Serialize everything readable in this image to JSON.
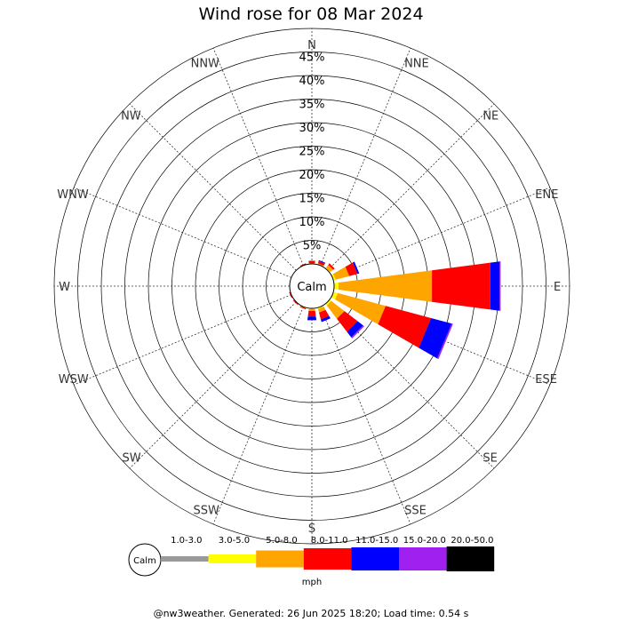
{
  "chart_data": {
    "type": "wind-rose",
    "title": "Wind rose for 08 Mar 2024",
    "directions": [
      "N",
      "NNE",
      "NE",
      "ENE",
      "E",
      "ESE",
      "SE",
      "SSE",
      "S",
      "SSW",
      "SW",
      "WSW",
      "W",
      "WNW",
      "NW",
      "NNW"
    ],
    "radial_ticks": [
      "5%",
      "10%",
      "15%",
      "20%",
      "25%",
      "30%",
      "35%",
      "40%",
      "45%"
    ],
    "radial_max": 50,
    "calm_label": "Calm",
    "unit": "mph",
    "speed_bins": [
      {
        "label": "1.0-3.0",
        "color": "#999999"
      },
      {
        "label": "3.0-5.0",
        "color": "#ffff00"
      },
      {
        "label": "5.0-8.0",
        "color": "#ffa500"
      },
      {
        "label": "8.0-11.0",
        "color": "#ff0000"
      },
      {
        "label": "11.0-15.0",
        "color": "#0000ff"
      },
      {
        "label": "15.0-20.0",
        "color": "#a020f0"
      },
      {
        "label": "20.0-50.0",
        "color": "#000000"
      }
    ],
    "series": [
      {
        "direction": "N",
        "values": [
          0,
          0,
          0.2,
          0.5,
          0,
          0,
          0
        ]
      },
      {
        "direction": "NNE",
        "values": [
          0,
          0,
          0.3,
          0.5,
          0.2,
          0,
          0
        ]
      },
      {
        "direction": "NE",
        "values": [
          0,
          0.2,
          0.8,
          0.4,
          0,
          0,
          0
        ]
      },
      {
        "direction": "ENE",
        "values": [
          0,
          0.5,
          3.0,
          1.8,
          0.4,
          0,
          0
        ]
      },
      {
        "direction": "E",
        "values": [
          0,
          1.0,
          20.0,
          12.5,
          2.0,
          0.2,
          0
        ]
      },
      {
        "direction": "ESE",
        "values": [
          0,
          1.0,
          10.5,
          10.0,
          4.5,
          0.3,
          0
        ]
      },
      {
        "direction": "SE",
        "values": [
          0,
          0.5,
          3.5,
          3.5,
          1.5,
          0.3,
          0
        ]
      },
      {
        "direction": "SSE",
        "values": [
          0,
          0.3,
          0.8,
          1.5,
          0.6,
          0,
          0
        ]
      },
      {
        "direction": "S",
        "values": [
          0,
          0.2,
          0.4,
          1.2,
          0.8,
          0,
          0
        ]
      },
      {
        "direction": "SSW",
        "values": [
          0,
          0,
          0.2,
          0.2,
          0,
          0,
          0
        ]
      },
      {
        "direction": "SW",
        "values": [
          0,
          0,
          0.1,
          0.2,
          0,
          0,
          0
        ]
      },
      {
        "direction": "WSW",
        "values": [
          0,
          0,
          0.1,
          0.2,
          0,
          0,
          0
        ]
      },
      {
        "direction": "W",
        "values": [
          0,
          0,
          0,
          0,
          0,
          0,
          0
        ]
      },
      {
        "direction": "WNW",
        "values": [
          0,
          0,
          0,
          0,
          0,
          0,
          0
        ]
      },
      {
        "direction": "NW",
        "values": [
          0,
          0,
          0,
          0,
          0,
          0,
          0
        ]
      },
      {
        "direction": "NNW",
        "values": [
          0,
          0,
          0,
          0.3,
          0,
          0,
          0
        ]
      }
    ],
    "grid": true
  },
  "footer": "@nw3weather. Generated: 26 Jun 2025 18:20; Load time: 0.54 s"
}
